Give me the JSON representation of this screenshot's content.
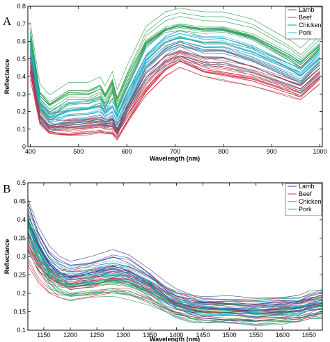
{
  "chart_data": [
    {
      "type": "line",
      "panel_label": "A",
      "xlabel": "Wavelength (nm)",
      "ylabel": "Reflectance",
      "xlim": [
        395,
        1005
      ],
      "ylim": [
        0,
        0.8
      ],
      "xticks": [
        400,
        500,
        600,
        700,
        800,
        900,
        1000
      ],
      "yticks": [
        0,
        0.1,
        0.2,
        0.3,
        0.4,
        0.5,
        0.6,
        0.7,
        0.8
      ],
      "grid": false,
      "legend_position": "top-right",
      "x": [
        400,
        420,
        440,
        480,
        520,
        545,
        555,
        570,
        580,
        600,
        640,
        680,
        710,
        760,
        800,
        860,
        940,
        960,
        1000
      ],
      "series": [
        {
          "name": "Lamb",
          "color": "#555577",
          "count": 15,
          "spread": 0.05,
          "values": [
            0.55,
            0.2,
            0.14,
            0.16,
            0.17,
            0.18,
            0.16,
            0.18,
            0.12,
            0.25,
            0.45,
            0.55,
            0.58,
            0.54,
            0.54,
            0.49,
            0.4,
            0.38,
            0.48
          ]
        },
        {
          "name": "Beef",
          "color": "#cc3344",
          "count": 15,
          "spread": 0.05,
          "values": [
            0.45,
            0.18,
            0.12,
            0.11,
            0.12,
            0.13,
            0.12,
            0.12,
            0.09,
            0.18,
            0.35,
            0.47,
            0.52,
            0.46,
            0.44,
            0.41,
            0.34,
            0.32,
            0.42
          ]
        },
        {
          "name": "Chicken",
          "color": "#2a9a4a",
          "count": 15,
          "spread": 0.07,
          "values": [
            0.62,
            0.28,
            0.22,
            0.29,
            0.29,
            0.32,
            0.27,
            0.35,
            0.25,
            0.38,
            0.6,
            0.68,
            0.7,
            0.68,
            0.68,
            0.64,
            0.52,
            0.48,
            0.58
          ]
        },
        {
          "name": "Pork",
          "color": "#22bbdd",
          "count": 15,
          "spread": 0.05,
          "values": [
            0.58,
            0.23,
            0.16,
            0.2,
            0.21,
            0.23,
            0.19,
            0.22,
            0.17,
            0.28,
            0.5,
            0.6,
            0.63,
            0.6,
            0.6,
            0.55,
            0.45,
            0.42,
            0.52
          ]
        }
      ]
    },
    {
      "type": "line",
      "panel_label": "B",
      "xlabel": "Wavelength (nm)",
      "ylabel": "Reflectance",
      "xlim": [
        1120,
        1675
      ],
      "ylim": [
        0.1,
        0.5
      ],
      "xticks": [
        1150,
        1200,
        1250,
        1300,
        1350,
        1400,
        1450,
        1500,
        1550,
        1600,
        1650
      ],
      "yticks": [
        0.1,
        0.15,
        0.2,
        0.25,
        0.3,
        0.35,
        0.4,
        0.45,
        0.5
      ],
      "grid": false,
      "legend_position": "top-right",
      "x": [
        1120,
        1140,
        1160,
        1180,
        1200,
        1240,
        1280,
        1310,
        1350,
        1380,
        1400,
        1430,
        1450,
        1500,
        1550,
        1600,
        1630,
        1650,
        1675
      ],
      "series": [
        {
          "name": "Lamb",
          "color": "#333399",
          "count": 15,
          "spread": 0.025,
          "values": [
            0.4,
            0.33,
            0.28,
            0.255,
            0.245,
            0.255,
            0.27,
            0.26,
            0.225,
            0.19,
            0.172,
            0.16,
            0.156,
            0.155,
            0.15,
            0.155,
            0.158,
            0.166,
            0.172
          ]
        },
        {
          "name": "Beef",
          "color": "#cc3344",
          "count": 15,
          "spread": 0.025,
          "values": [
            0.32,
            0.27,
            0.24,
            0.225,
            0.22,
            0.23,
            0.24,
            0.235,
            0.21,
            0.185,
            0.17,
            0.158,
            0.154,
            0.152,
            0.148,
            0.153,
            0.156,
            0.164,
            0.17
          ]
        },
        {
          "name": "Chicken",
          "color": "#2a9a4a",
          "count": 15,
          "spread": 0.025,
          "values": [
            0.39,
            0.31,
            0.255,
            0.23,
            0.22,
            0.225,
            0.23,
            0.225,
            0.205,
            0.182,
            0.168,
            0.157,
            0.153,
            0.151,
            0.147,
            0.152,
            0.155,
            0.163,
            0.169
          ]
        },
        {
          "name": "Pork",
          "color": "#22bbdd",
          "count": 15,
          "spread": 0.025,
          "values": [
            0.37,
            0.3,
            0.26,
            0.24,
            0.235,
            0.24,
            0.25,
            0.24,
            0.215,
            0.186,
            0.17,
            0.158,
            0.155,
            0.153,
            0.149,
            0.154,
            0.157,
            0.165,
            0.171
          ]
        }
      ]
    }
  ]
}
